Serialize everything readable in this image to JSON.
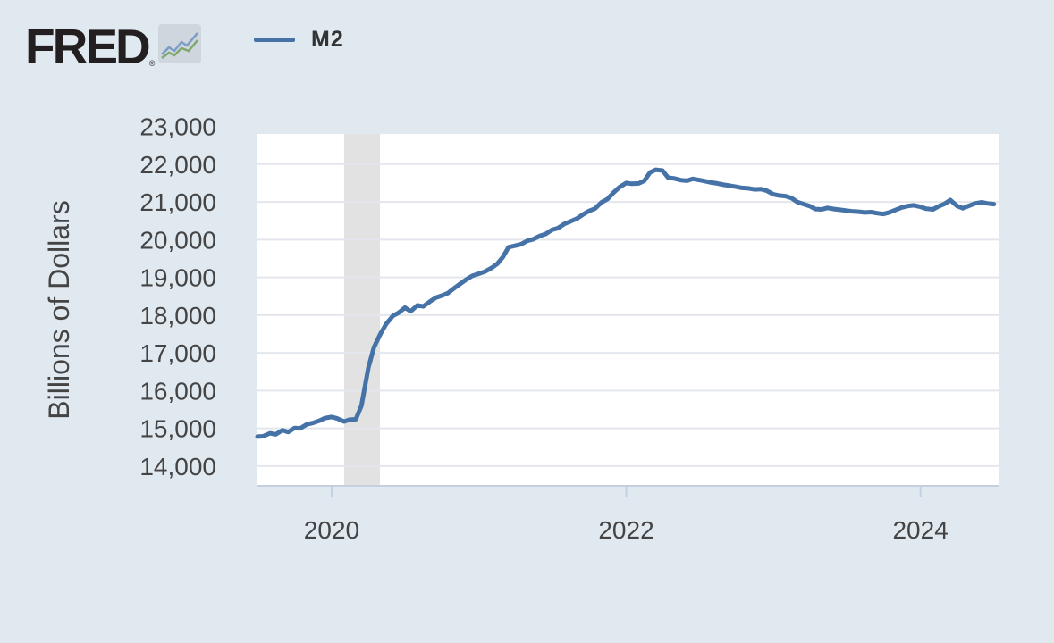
{
  "logo": {
    "text": "FRED",
    "reg_mark": "®",
    "icon": "chart-line-icon"
  },
  "colors": {
    "series": "#4572a7",
    "recession": "#e2e2e2",
    "grid": "#e3e6ec",
    "background": "#e1e9f0"
  },
  "chart_data": {
    "type": "line",
    "title": "",
    "xlabel": "",
    "ylabel": "Billions of Dollars",
    "ylim": [
      13500,
      22800
    ],
    "xlim": [
      "2019-07-01",
      "2024-07-15"
    ],
    "grid": true,
    "legend_position": "top-left",
    "y_ticks": [
      14000,
      15000,
      16000,
      17000,
      18000,
      19000,
      20000,
      21000,
      22000,
      23000
    ],
    "y_tick_labels": [
      "14,000",
      "15,000",
      "16,000",
      "17,000",
      "18,000",
      "19,000",
      "20,000",
      "21,000",
      "22,000",
      "23,000"
    ],
    "x_ticks": [
      "2020-01-01",
      "2022-01-01",
      "2024-01-01"
    ],
    "x_tick_labels": [
      "2020",
      "2022",
      "2024"
    ],
    "recessions": [
      {
        "start": "2020-02-01",
        "end": "2020-04-30"
      }
    ],
    "series": [
      {
        "name": "M2",
        "points": [
          [
            "2019-07-01",
            14780
          ],
          [
            "2019-07-15",
            14790
          ],
          [
            "2019-08-01",
            14870
          ],
          [
            "2019-08-15",
            14840
          ],
          [
            "2019-09-01",
            14950
          ],
          [
            "2019-09-15",
            14900
          ],
          [
            "2019-10-01",
            15010
          ],
          [
            "2019-10-15",
            15000
          ],
          [
            "2019-11-01",
            15110
          ],
          [
            "2019-11-15",
            15140
          ],
          [
            "2019-12-01",
            15200
          ],
          [
            "2019-12-15",
            15270
          ],
          [
            "2020-01-01",
            15300
          ],
          [
            "2020-01-15",
            15260
          ],
          [
            "2020-02-01",
            15180
          ],
          [
            "2020-02-15",
            15230
          ],
          [
            "2020-03-01",
            15240
          ],
          [
            "2020-03-15",
            15600
          ],
          [
            "2020-04-01",
            16600
          ],
          [
            "2020-04-15",
            17150
          ],
          [
            "2020-05-01",
            17500
          ],
          [
            "2020-05-15",
            17760
          ],
          [
            "2020-06-01",
            17980
          ],
          [
            "2020-06-15",
            18060
          ],
          [
            "2020-07-01",
            18200
          ],
          [
            "2020-07-15",
            18100
          ],
          [
            "2020-08-01",
            18260
          ],
          [
            "2020-08-15",
            18230
          ],
          [
            "2020-09-01",
            18360
          ],
          [
            "2020-09-15",
            18460
          ],
          [
            "2020-10-01",
            18520
          ],
          [
            "2020-10-15",
            18580
          ],
          [
            "2020-11-01",
            18720
          ],
          [
            "2020-11-15",
            18830
          ],
          [
            "2020-12-01",
            18950
          ],
          [
            "2020-12-15",
            19040
          ],
          [
            "2021-01-01",
            19100
          ],
          [
            "2021-01-15",
            19150
          ],
          [
            "2021-02-01",
            19250
          ],
          [
            "2021-02-15",
            19360
          ],
          [
            "2021-03-01",
            19540
          ],
          [
            "2021-03-15",
            19800
          ],
          [
            "2021-04-01",
            19840
          ],
          [
            "2021-04-15",
            19880
          ],
          [
            "2021-05-01",
            19970
          ],
          [
            "2021-05-15",
            20010
          ],
          [
            "2021-06-01",
            20100
          ],
          [
            "2021-06-15",
            20150
          ],
          [
            "2021-07-01",
            20260
          ],
          [
            "2021-07-15",
            20300
          ],
          [
            "2021-08-01",
            20420
          ],
          [
            "2021-08-15",
            20480
          ],
          [
            "2021-09-01",
            20560
          ],
          [
            "2021-09-15",
            20660
          ],
          [
            "2021-10-01",
            20760
          ],
          [
            "2021-10-15",
            20820
          ],
          [
            "2021-11-01",
            20990
          ],
          [
            "2021-11-15",
            21070
          ],
          [
            "2021-12-01",
            21250
          ],
          [
            "2021-12-15",
            21390
          ],
          [
            "2022-01-01",
            21500
          ],
          [
            "2022-01-15",
            21480
          ],
          [
            "2022-02-01",
            21490
          ],
          [
            "2022-02-15",
            21560
          ],
          [
            "2022-03-01",
            21780
          ],
          [
            "2022-03-15",
            21850
          ],
          [
            "2022-04-01",
            21830
          ],
          [
            "2022-04-15",
            21640
          ],
          [
            "2022-05-01",
            21620
          ],
          [
            "2022-05-15",
            21580
          ],
          [
            "2022-06-01",
            21560
          ],
          [
            "2022-06-15",
            21610
          ],
          [
            "2022-07-01",
            21580
          ],
          [
            "2022-07-15",
            21550
          ],
          [
            "2022-08-01",
            21510
          ],
          [
            "2022-08-15",
            21490
          ],
          [
            "2022-09-01",
            21450
          ],
          [
            "2022-09-15",
            21430
          ],
          [
            "2022-10-01",
            21400
          ],
          [
            "2022-10-15",
            21370
          ],
          [
            "2022-11-01",
            21360
          ],
          [
            "2022-11-15",
            21330
          ],
          [
            "2022-12-01",
            21340
          ],
          [
            "2022-12-15",
            21300
          ],
          [
            "2023-01-01",
            21200
          ],
          [
            "2023-01-15",
            21170
          ],
          [
            "2023-02-01",
            21150
          ],
          [
            "2023-02-15",
            21100
          ],
          [
            "2023-03-01",
            21000
          ],
          [
            "2023-03-15",
            20950
          ],
          [
            "2023-04-01",
            20890
          ],
          [
            "2023-04-15",
            20810
          ],
          [
            "2023-05-01",
            20800
          ],
          [
            "2023-05-15",
            20840
          ],
          [
            "2023-06-01",
            20810
          ],
          [
            "2023-06-15",
            20790
          ],
          [
            "2023-07-01",
            20770
          ],
          [
            "2023-07-15",
            20750
          ],
          [
            "2023-08-01",
            20740
          ],
          [
            "2023-08-15",
            20720
          ],
          [
            "2023-09-01",
            20730
          ],
          [
            "2023-09-15",
            20700
          ],
          [
            "2023-10-01",
            20680
          ],
          [
            "2023-10-15",
            20720
          ],
          [
            "2023-11-01",
            20790
          ],
          [
            "2023-11-15",
            20850
          ],
          [
            "2023-12-01",
            20890
          ],
          [
            "2023-12-15",
            20910
          ],
          [
            "2024-01-01",
            20870
          ],
          [
            "2024-01-15",
            20820
          ],
          [
            "2024-02-01",
            20800
          ],
          [
            "2024-02-15",
            20880
          ],
          [
            "2024-03-01",
            20950
          ],
          [
            "2024-03-15",
            21050
          ],
          [
            "2024-04-01",
            20890
          ],
          [
            "2024-04-15",
            20830
          ],
          [
            "2024-05-01",
            20900
          ],
          [
            "2024-05-15",
            20960
          ],
          [
            "2024-06-01",
            20990
          ],
          [
            "2024-06-15",
            20960
          ],
          [
            "2024-07-01",
            20940
          ]
        ]
      }
    ]
  }
}
